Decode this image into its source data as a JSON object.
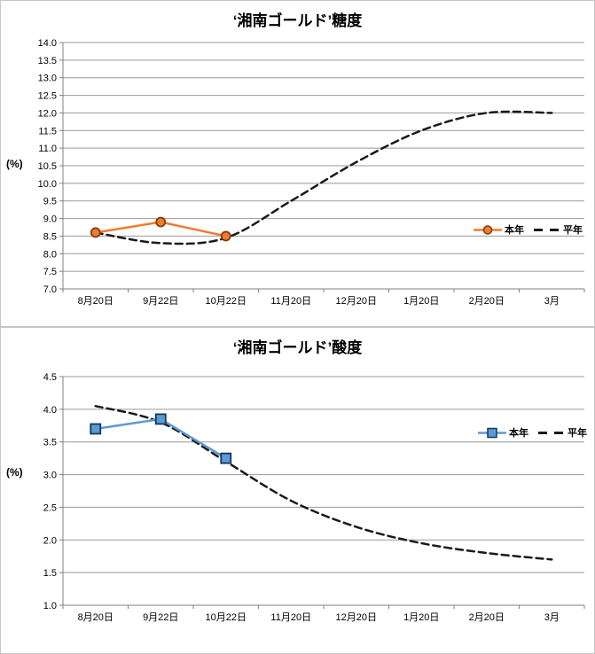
{
  "chart_data": [
    {
      "type": "line",
      "title": "‘湘南ゴールド’糖度",
      "ylabel": "(%)",
      "categories": [
        "8月20日",
        "9月22日",
        "10月22日",
        "11月20日",
        "12月20日",
        "1月20日",
        "2月20日",
        "3月"
      ],
      "ylim": [
        7.0,
        14.0
      ],
      "ytick_step": 0.5,
      "ytick_labels": [
        "14.0",
        "13.5",
        "13.0",
        "12.5",
        "12.0",
        "11.5",
        "11.0",
        "10.5",
        "10.0",
        "9.5",
        "9.0",
        "8.5",
        "8.0",
        "7.5",
        "7.0"
      ],
      "grid": true,
      "legend_position": "inside right",
      "series": [
        {
          "key": "this-year",
          "name": "本年",
          "values": [
            8.6,
            8.9,
            8.5
          ],
          "color": "#ED7D31",
          "line_style": "solid",
          "smooth": false,
          "marker": "circle",
          "marker_fill": "#ED7D31",
          "marker_outline": "#843C0C"
        },
        {
          "key": "average",
          "name": "平年",
          "values": [
            8.6,
            8.3,
            8.45,
            9.5,
            10.6,
            11.5,
            12.0,
            12.0
          ],
          "color": "#1a1a1a",
          "line_style": "dashed",
          "smooth": true,
          "marker": "none"
        }
      ]
    },
    {
      "type": "line",
      "title": "‘湘南ゴールド’酸度",
      "ylabel": "(%)",
      "categories": [
        "8月20日",
        "9月22日",
        "10月22日",
        "11月20日",
        "12月20日",
        "1月20日",
        "2月20日",
        "3月"
      ],
      "ylim": [
        1.0,
        4.5
      ],
      "ytick_step": 0.5,
      "ytick_labels": [
        "4.5",
        "4.0",
        "3.5",
        "3.0",
        "2.5",
        "2.0",
        "1.5",
        "1.0"
      ],
      "grid": true,
      "legend_position": "inside right",
      "series": [
        {
          "key": "this-year",
          "name": "本年",
          "values": [
            3.7,
            3.85,
            3.25
          ],
          "color": "#5B9BD5",
          "line_style": "solid",
          "smooth": false,
          "marker": "square",
          "marker_fill": "#5B9BD5",
          "marker_outline": "#17375E"
        },
        {
          "key": "average",
          "name": "平年",
          "values": [
            4.05,
            3.8,
            3.2,
            2.6,
            2.2,
            1.95,
            1.8,
            1.7
          ],
          "color": "#1a1a1a",
          "line_style": "dashed",
          "smooth": true,
          "marker": "none"
        }
      ]
    }
  ],
  "style": {
    "grid_color": "#999999",
    "axis_color": "#808080",
    "text_color": "#000000",
    "background": "#FFFFFF"
  }
}
